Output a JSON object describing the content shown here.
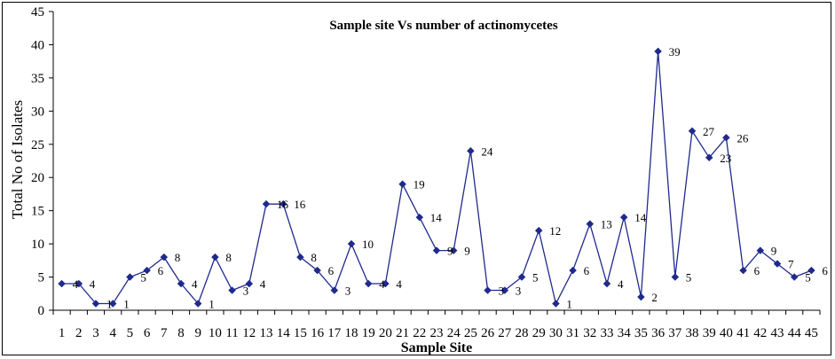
{
  "chart_data": {
    "type": "line",
    "title": "Sample site Vs number of actinomycetes",
    "xlabel": "Sample Site",
    "ylabel": "Total No of Isolates",
    "ylim": [
      0,
      45
    ],
    "yticks": [
      0,
      5,
      10,
      15,
      20,
      25,
      30,
      35,
      40,
      45
    ],
    "categories": [
      "1",
      "2",
      "3",
      "4",
      "5",
      "6",
      "7",
      "8",
      "9",
      "10",
      "11",
      "12",
      "13",
      "14",
      "15",
      "16",
      "17",
      "18",
      "19",
      "20",
      "21",
      "22",
      "23",
      "24",
      "25",
      "26",
      "27",
      "28",
      "29",
      "30",
      "31",
      "32",
      "33",
      "34",
      "35",
      "36",
      "37",
      "38",
      "39",
      "40",
      "41",
      "42",
      "43",
      "44",
      "45"
    ],
    "values": [
      4,
      4,
      1,
      1,
      5,
      6,
      8,
      4,
      1,
      8,
      3,
      4,
      16,
      16,
      8,
      6,
      3,
      10,
      4,
      4,
      19,
      14,
      9,
      9,
      24,
      3,
      3,
      5,
      12,
      1,
      6,
      13,
      4,
      14,
      2,
      39,
      5,
      27,
      23,
      26,
      6,
      9,
      7,
      5,
      6
    ],
    "line_color": "#1f2a8c",
    "marker": "diamond",
    "grid": false,
    "legend": "none"
  }
}
